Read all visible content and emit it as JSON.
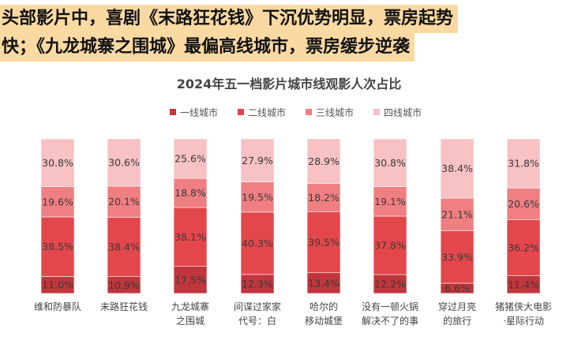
{
  "headline": {
    "line1": "头部影片中，喜剧《末路狂花钱》下沉优势明显，票房起势",
    "line2": "快；《九龙城寨之围城》最偏高线城市，票房缓步逆袭"
  },
  "chart_data": {
    "type": "bar",
    "stacked": true,
    "title": "2024年五一档影片城市线观影人次占比",
    "legend_position": "top",
    "categories": [
      [
        "维和防暴队"
      ],
      [
        "末路狂花钱"
      ],
      [
        "九龙城寨",
        "之围城"
      ],
      [
        "间谍过家家",
        "代号：白"
      ],
      [
        "哈尔的",
        "移动城堡"
      ],
      [
        "没有一顿火锅",
        "解决不了的事"
      ],
      [
        "穿过月亮",
        "的旅行"
      ],
      [
        "猪猪侠大电影",
        "·星际行动"
      ]
    ],
    "series": [
      {
        "name": "一线城市",
        "color": "#c0363c",
        "values": [
          11.0,
          10.9,
          17.5,
          12.3,
          13.4,
          12.2,
          6.6,
          11.4
        ],
        "labels": [
          "11.0%",
          "10.9%",
          "17.5%",
          "12.3%",
          "13.4%",
          "12.2%",
          "6.6%",
          "11.4%"
        ]
      },
      {
        "name": "二线城市",
        "color": "#e3474b",
        "values": [
          38.5,
          38.4,
          38.1,
          40.3,
          39.5,
          37.8,
          33.9,
          36.2
        ],
        "labels": [
          "38.5%",
          "38.4%",
          "38.1%",
          "40.3%",
          "39.5%",
          "37.8%",
          "33.9%",
          "36.2%"
        ]
      },
      {
        "name": "三线城市",
        "color": "#ef7f82",
        "values": [
          19.6,
          20.1,
          18.8,
          19.5,
          18.2,
          19.1,
          21.1,
          20.6
        ],
        "labels": [
          "19.6%",
          "20.1%",
          "18.8%",
          "19.5%",
          "18.2%",
          "19.1%",
          "21.1%",
          "20.6%"
        ]
      },
      {
        "name": "四线城市",
        "color": "#f8c1c3",
        "values": [
          30.8,
          30.6,
          25.6,
          27.9,
          28.9,
          30.8,
          38.4,
          31.8
        ],
        "labels": [
          "30.8%",
          "30.6%",
          "25.6%",
          "27.9%",
          "28.9%",
          "30.8%",
          "38.4%",
          "31.8%"
        ]
      }
    ],
    "ylim": [
      0,
      100
    ]
  }
}
